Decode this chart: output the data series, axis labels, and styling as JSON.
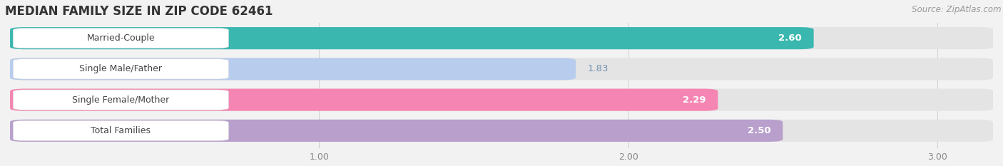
{
  "title": "MEDIAN FAMILY SIZE IN ZIP CODE 62461",
  "source": "Source: ZipAtlas.com",
  "categories": [
    "Married-Couple",
    "Single Male/Father",
    "Single Female/Mother",
    "Total Families"
  ],
  "values": [
    2.6,
    1.83,
    2.29,
    2.5
  ],
  "bar_colors": [
    "#3ab8b0",
    "#b8ccee",
    "#f585b2",
    "#b89fcc"
  ],
  "xlim_min": 0.0,
  "xlim_max": 3.18,
  "xticks": [
    1.0,
    2.0,
    3.0
  ],
  "bg_color": "#f2f2f2",
  "track_color": "#e4e4e4",
  "title_fontsize": 12,
  "label_fontsize": 9,
  "value_fontsize": 9.5,
  "source_fontsize": 8.5
}
